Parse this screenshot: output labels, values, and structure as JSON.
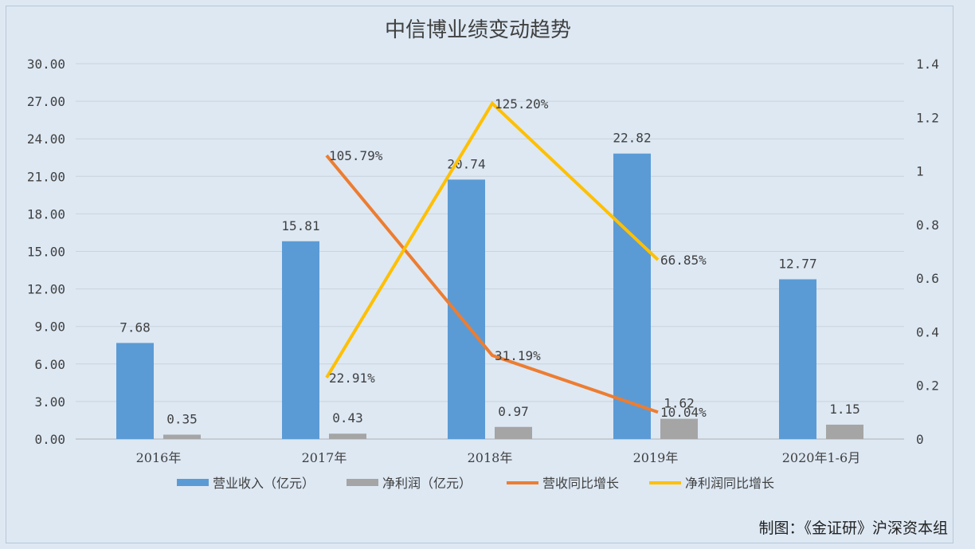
{
  "chart_data": {
    "type": "bar",
    "title": "中信博业绩变动趋势",
    "categories": [
      "2016年",
      "2017年",
      "2018年",
      "2019年",
      "2020年1-6月"
    ],
    "series": [
      {
        "name": "营业收入（亿元）",
        "kind": "bar",
        "axis": "left",
        "color": "#5b9bd5",
        "values": [
          7.68,
          15.81,
          20.74,
          22.82,
          12.77
        ],
        "labels": [
          "7.68",
          "15.81",
          "20.74",
          "22.82",
          "12.77"
        ]
      },
      {
        "name": "净利润（亿元）",
        "kind": "bar",
        "axis": "left",
        "color": "#a5a5a5",
        "values": [
          0.35,
          0.43,
          0.97,
          1.62,
          1.15
        ],
        "labels": [
          "0.35",
          "0.43",
          "0.97",
          "1.62",
          "1.15"
        ]
      },
      {
        "name": "营收同比增长",
        "kind": "line",
        "axis": "right",
        "color": "#ed7d31",
        "values": [
          null,
          1.0579,
          0.3119,
          0.1004,
          null
        ],
        "labels": [
          null,
          "105.79%",
          "31.19%",
          "10.04%",
          null
        ]
      },
      {
        "name": "净利润同比增长",
        "kind": "line",
        "axis": "right",
        "color": "#ffc000",
        "values": [
          null,
          0.2291,
          1.252,
          0.6685,
          null
        ],
        "labels": [
          null,
          "22.91%",
          "125.20%",
          "66.85%",
          null
        ]
      }
    ],
    "y_left": {
      "min": 0,
      "max": 30,
      "ticks": [
        "0.00",
        "3.00",
        "6.00",
        "9.00",
        "12.00",
        "15.00",
        "18.00",
        "21.00",
        "24.00",
        "27.00",
        "30.00"
      ]
    },
    "y_right": {
      "min": 0,
      "max": 1.4,
      "ticks": [
        "0",
        "0.2",
        "0.4",
        "0.6",
        "0.8",
        "1",
        "1.2",
        "1.4"
      ]
    },
    "grid": true,
    "legend_position": "bottom"
  },
  "credit": "制图：《金证研》沪深资本组"
}
